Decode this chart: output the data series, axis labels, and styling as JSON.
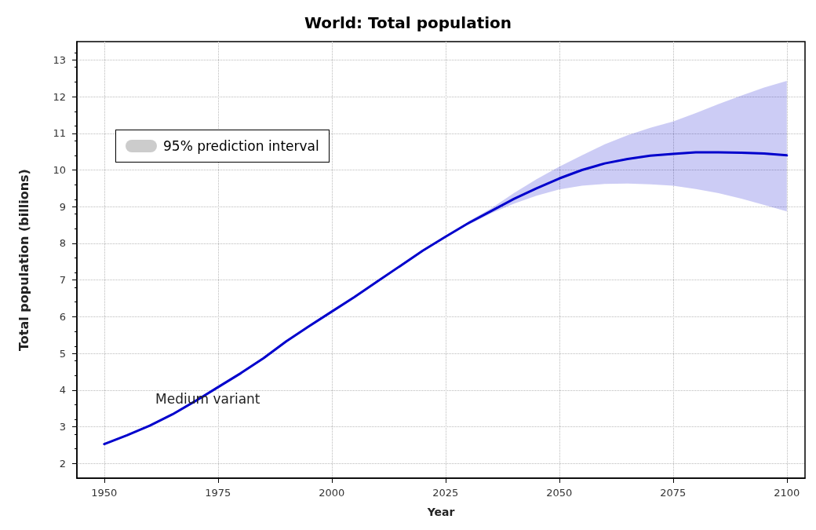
{
  "chart_data": {
    "type": "line",
    "title": "World: Total population",
    "xlabel": "Year",
    "ylabel": "Total population (billions)",
    "legend_title": "95% prediction interval",
    "x": [
      1950,
      1955,
      1960,
      1965,
      1970,
      1975,
      1980,
      1985,
      1990,
      1995,
      2000,
      2005,
      2010,
      2015,
      2020,
      2025,
      2030,
      2035,
      2040,
      2045,
      2050,
      2055,
      2060,
      2065,
      2070,
      2075,
      2080,
      2085,
      2090,
      2095,
      2100
    ],
    "series": [
      {
        "name": "Medium variant",
        "color": "#0000cc",
        "values": [
          2.53,
          2.77,
          3.03,
          3.34,
          3.7,
          4.08,
          4.46,
          4.87,
          5.33,
          5.74,
          6.14,
          6.54,
          6.96,
          7.38,
          7.8,
          8.18,
          8.55,
          8.88,
          9.21,
          9.5,
          9.77,
          10.0,
          10.18,
          10.3,
          10.39,
          10.44,
          10.48,
          10.48,
          10.47,
          10.45,
          10.4
        ],
        "lower": [
          null,
          null,
          null,
          null,
          null,
          null,
          null,
          null,
          null,
          null,
          null,
          null,
          null,
          null,
          null,
          null,
          8.5,
          8.82,
          9.08,
          9.3,
          9.47,
          9.57,
          9.62,
          9.63,
          9.61,
          9.57,
          9.48,
          9.37,
          9.22,
          9.05,
          8.87
        ],
        "upper": [
          null,
          null,
          null,
          null,
          null,
          null,
          null,
          null,
          null,
          null,
          null,
          null,
          null,
          null,
          null,
          null,
          8.6,
          8.95,
          9.37,
          9.75,
          10.09,
          10.4,
          10.7,
          10.95,
          11.15,
          11.32,
          11.55,
          11.8,
          12.03,
          12.25,
          12.43
        ]
      }
    ],
    "xlim": [
      1944,
      2104
    ],
    "xticks": [
      1950,
      1975,
      2000,
      2025,
      2050,
      2075,
      2100
    ],
    "ylim": [
      1.6,
      13.5
    ],
    "yticks": [
      2,
      3,
      4,
      5,
      6,
      7,
      8,
      9,
      10,
      11,
      12,
      13
    ],
    "grid": true,
    "marker": "none",
    "line_style": "solid"
  }
}
